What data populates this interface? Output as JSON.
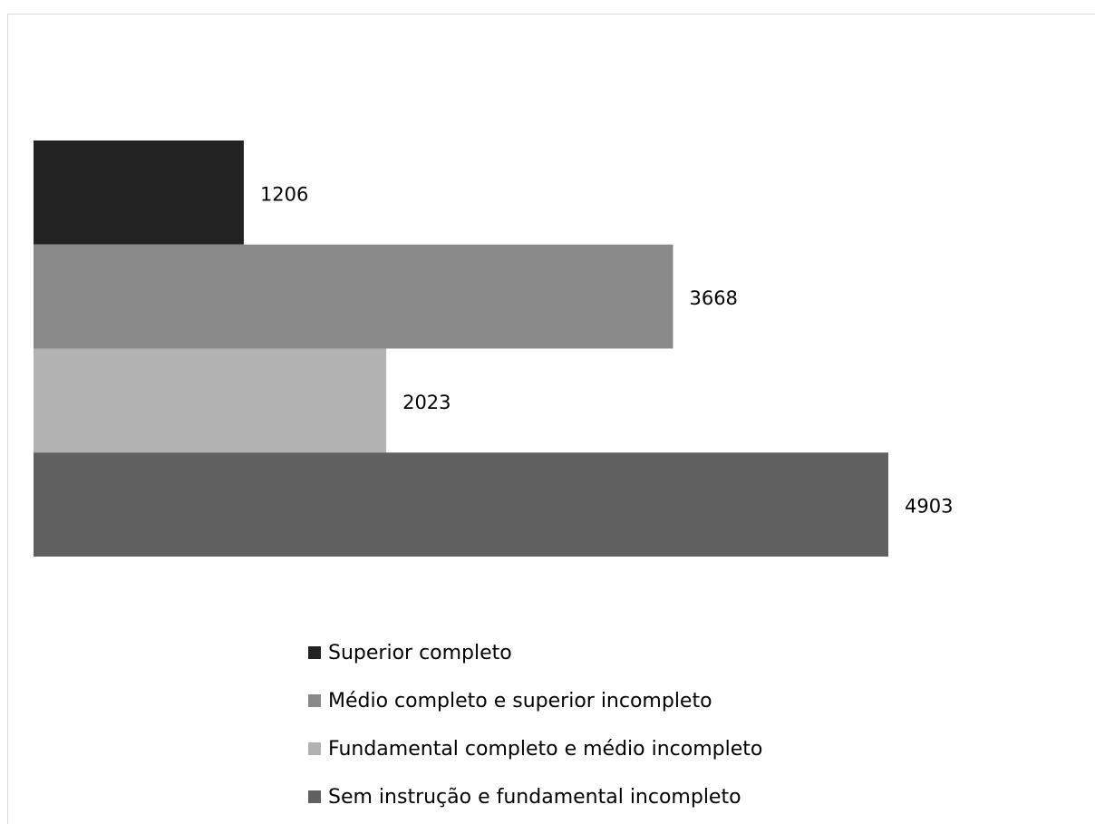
{
  "chart_data": {
    "type": "bar",
    "orientation": "horizontal",
    "series": [
      {
        "name": "Superior completo",
        "color": "#222222",
        "values": [
          1206
        ]
      },
      {
        "name": "Médio completo e superior incompleto",
        "color": "#898989",
        "values": [
          3668
        ]
      },
      {
        "name": "Fundamental completo e médio incompleto",
        "color": "#b2b2b2",
        "values": [
          2023
        ]
      },
      {
        "name": "Sem instrução e fundamental incompleto",
        "color": "#606060",
        "values": [
          4903
        ]
      }
    ],
    "legend": "bottom"
  }
}
